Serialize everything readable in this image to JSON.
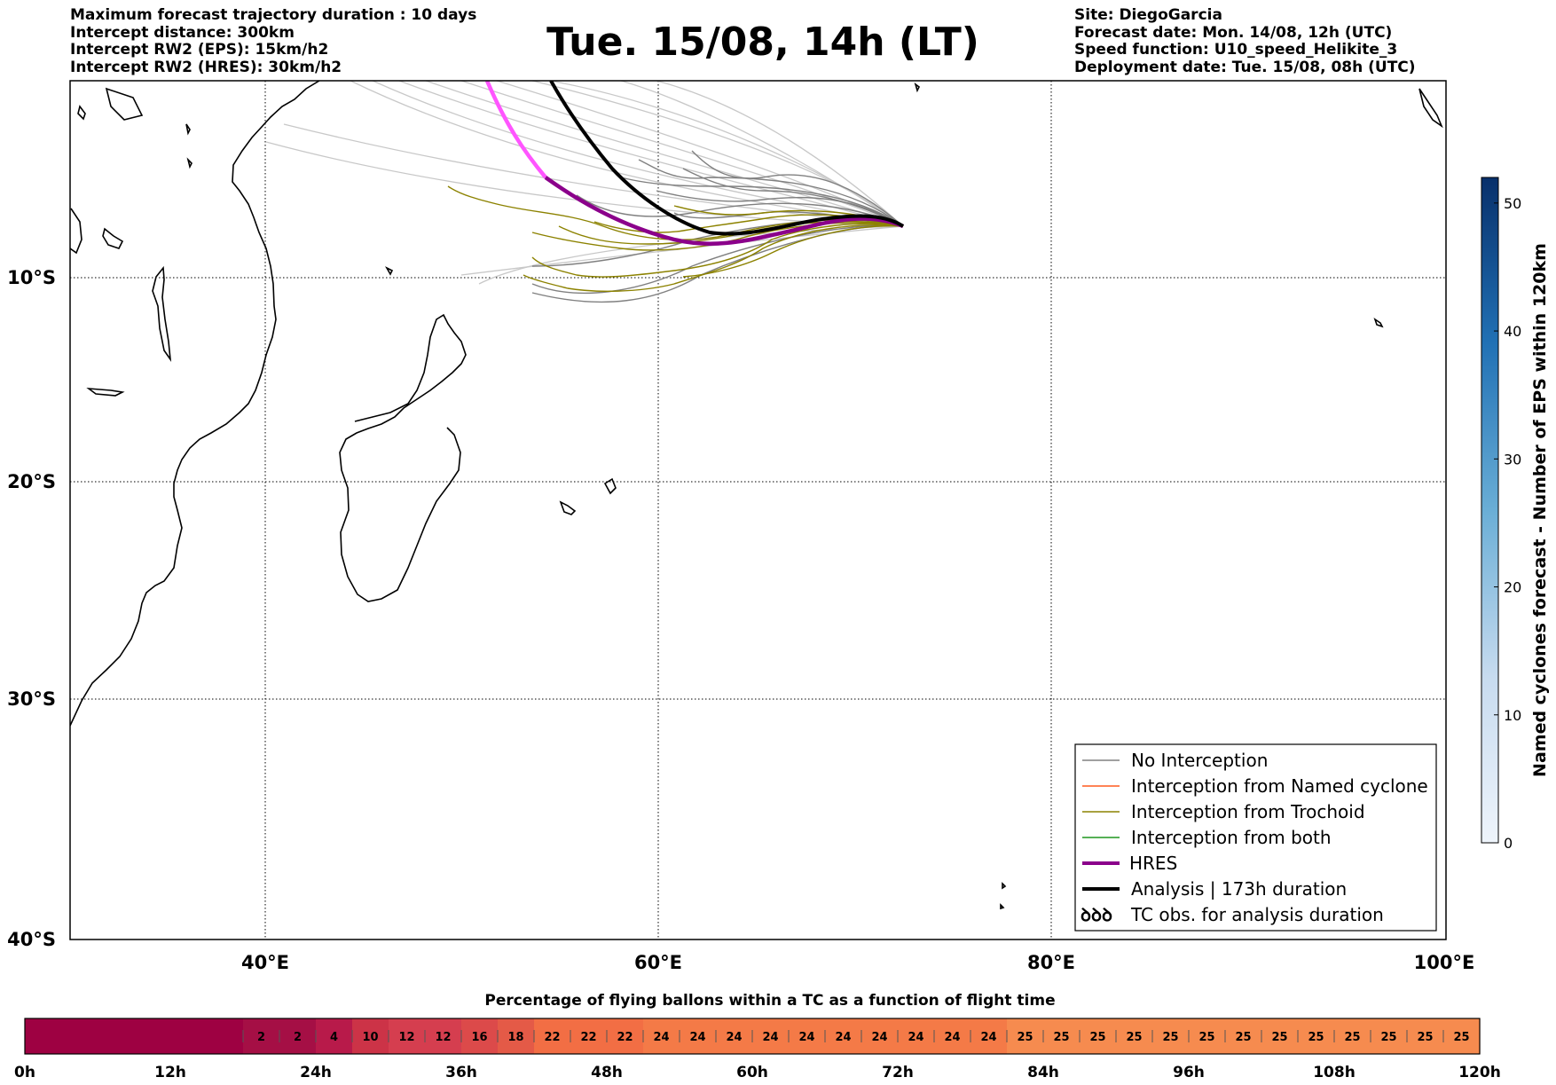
{
  "header": {
    "left_lines": [
      "Maximum forecast trajectory duration : 10 days",
      "Intercept distance: 300km",
      "Intercept RW2 (EPS):  15km/h2",
      "Intercept RW2 (HRES): 30km/h2"
    ],
    "title": "Tue. 15/08, 14h (LT)",
    "right_lines": [
      "Site: DiegoGarcia",
      "Forecast date: Mon. 14/08, 12h (UTC)",
      "Speed function: U10_speed_Helikite_3",
      "Deployment date: Tue. 15/08, 08h (UTC)"
    ]
  },
  "map": {
    "lon_labels": [
      "40°E",
      "60°E",
      "80°E",
      "100°E"
    ],
    "lat_labels": [
      "10°S",
      "20°S",
      "30°S",
      "40°S"
    ],
    "colors": {
      "no_interception": "#808080",
      "named_cyclone": "#ff5a1e",
      "trochoid": "#8c8200",
      "both": "#1e961e",
      "hres": "#8b008b",
      "hres_early": "#ff55ff",
      "analysis": "#000000"
    }
  },
  "legend": {
    "items": [
      {
        "label": "No Interception"
      },
      {
        "label": "Interception from Named cyclone"
      },
      {
        "label": "Interception from Trochoid"
      },
      {
        "label": "Interception from both"
      },
      {
        "label": "HRES"
      },
      {
        "label": "Analysis | 173h duration"
      },
      {
        "label": "TC obs. for analysis duration",
        "symbol": "ꝺꝺꝺ"
      }
    ]
  },
  "colorbar": {
    "label": "Named cyclones forecast - Number of EPS within 120km",
    "ticks": [
      "0",
      "10",
      "20",
      "30",
      "40",
      "50"
    ],
    "range": [
      0,
      52
    ],
    "color_low": "#e6f0fa",
    "color_high": "#08306b"
  },
  "strip": {
    "title": "Percentage of flying ballons within a TC as a function of flight time",
    "values": [
      0,
      0,
      0,
      0,
      0,
      0,
      2,
      2,
      4,
      10,
      12,
      12,
      16,
      18,
      22,
      22,
      22,
      24,
      24,
      24,
      24,
      24,
      24,
      24,
      24,
      24,
      24,
      25,
      25,
      25,
      25,
      25,
      25,
      25,
      25,
      25,
      25,
      25,
      25,
      25
    ],
    "tick_labels": [
      "0h",
      "12h",
      "24h",
      "36h",
      "48h",
      "60h",
      "72h",
      "84h",
      "96h",
      "108h",
      "120h"
    ]
  }
}
